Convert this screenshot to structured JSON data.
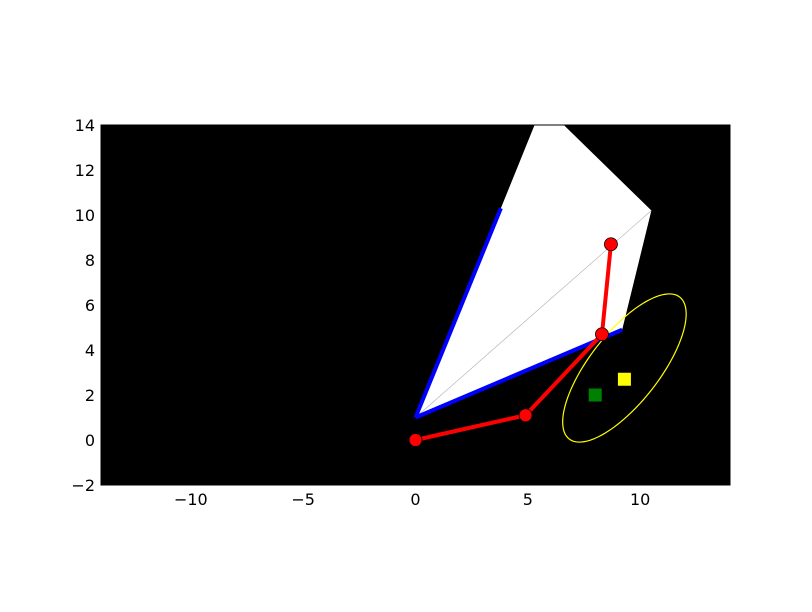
{
  "chart_data": {
    "type": "scatter",
    "title": "",
    "xlabel": "",
    "ylabel": "",
    "xlim": [
      -14,
      14
    ],
    "ylim": [
      -2,
      14
    ],
    "xticks": [
      -10,
      -5,
      0,
      5,
      10
    ],
    "yticks": [
      -2,
      0,
      2,
      4,
      6,
      8,
      10,
      12,
      14
    ],
    "xtick_labels": [
      "−10",
      "−5",
      "0",
      "5",
      "10"
    ],
    "ytick_labels": [
      "−2",
      "0",
      "2",
      "4",
      "6",
      "8",
      "10",
      "12",
      "14"
    ],
    "grid": false,
    "background_color": "#000000",
    "white_region": [
      [
        0,
        1
      ],
      [
        3.8,
        10.3
      ],
      [
        5.3,
        14
      ],
      [
        6.6,
        14
      ],
      [
        10.5,
        10.2
      ],
      [
        9.2,
        4.9
      ]
    ],
    "thin_ray": {
      "from": [
        0,
        1
      ],
      "to": [
        10.5,
        10.2
      ]
    },
    "blue_lines": [
      {
        "points": [
          [
            0,
            1
          ],
          [
            3.8,
            10.3
          ]
        ]
      },
      {
        "points": [
          [
            0,
            1
          ],
          [
            9.2,
            4.9
          ]
        ]
      }
    ],
    "arm_joints": [
      [
        0,
        0
      ],
      [
        4.9,
        1.1
      ],
      [
        8.3,
        4.7
      ],
      [
        8.7,
        8.7
      ]
    ],
    "ellipse": {
      "center": [
        9.3,
        3.2
      ],
      "rx": 4.0,
      "ry": 1.55,
      "angle_deg": 52
    },
    "green_square": [
      8.0,
      2.0
    ],
    "yellow_square": [
      9.3,
      2.7
    ],
    "colors": {
      "arm": "#ff0000",
      "blue_lines": "#0000ff",
      "ellipse": "#ffff00",
      "green": "#008000",
      "yellow": "#ffff00",
      "white_region": "#ffffff"
    }
  }
}
